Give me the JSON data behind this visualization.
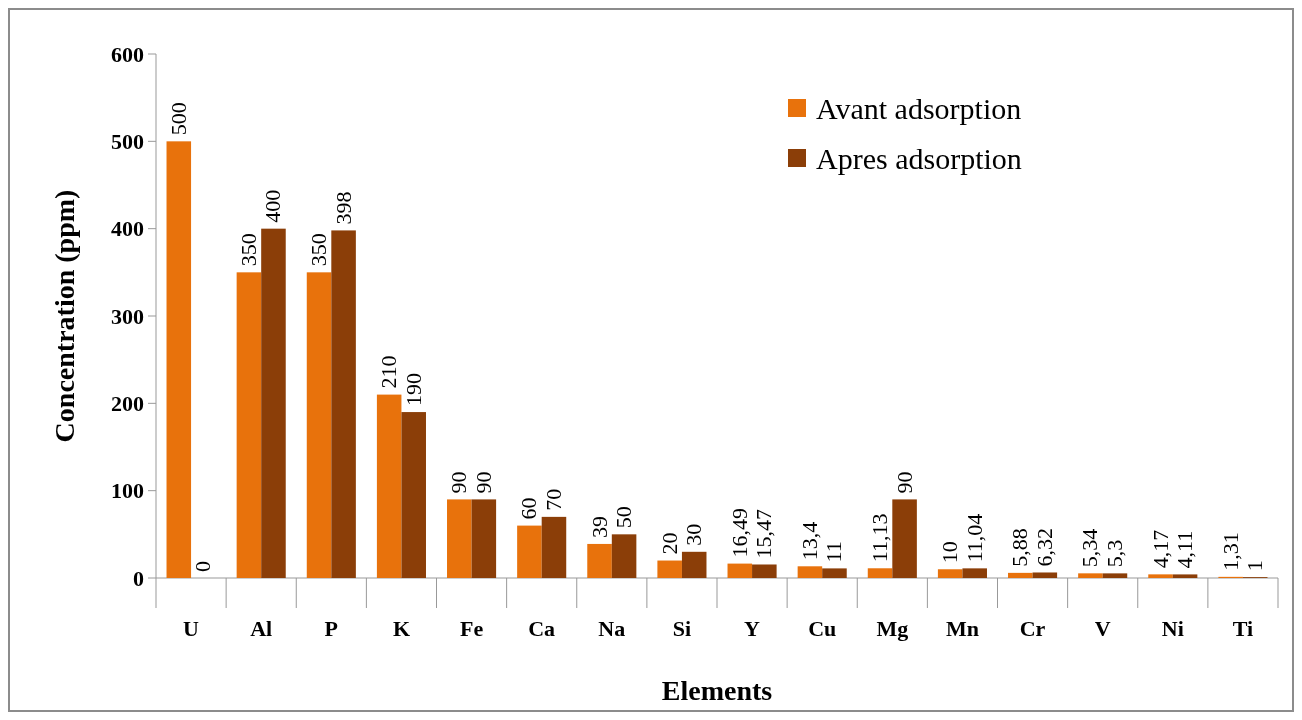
{
  "chart_data": {
    "type": "bar",
    "xlabel": "Elements",
    "ylabel": "Concentration (ppm)",
    "categories": [
      "U",
      "Al",
      "P",
      "K",
      "Fe",
      "Ca",
      "Na",
      "Si",
      "Y",
      "Cu",
      "Mg",
      "Mn",
      "Cr",
      "V",
      "Ni",
      "Ti"
    ],
    "series": [
      {
        "name": "Avant adsorption",
        "color": "#e8720c",
        "values": [
          500,
          350,
          350,
          210,
          90,
          60,
          39,
          20,
          16.49,
          13.4,
          11.13,
          10,
          5.88,
          5.34,
          4.17,
          1.31
        ],
        "value_labels": [
          "500",
          "350",
          "350",
          "210",
          "90",
          "60",
          "39",
          "20",
          "16,49",
          "13,4",
          "11,13",
          "10",
          "5,88",
          "5,34",
          "4,17",
          "1,31"
        ]
      },
      {
        "name": "Apres adsorption",
        "color": "#8b3e08",
        "values": [
          0,
          400,
          398,
          190,
          90,
          70,
          50,
          30,
          15.47,
          11,
          90,
          11.04,
          6.32,
          5.3,
          4.11,
          1
        ],
        "value_labels": [
          "0",
          "400",
          "398",
          "190",
          "90",
          "70",
          "50",
          "30",
          "15,47",
          "11",
          "90",
          "11,04",
          "6,32",
          "5,3",
          "4,11",
          "1"
        ]
      }
    ],
    "ylim": [
      0,
      600
    ],
    "yticks": [
      0,
      100,
      200,
      300,
      400,
      500,
      600
    ],
    "legend": "top right"
  }
}
